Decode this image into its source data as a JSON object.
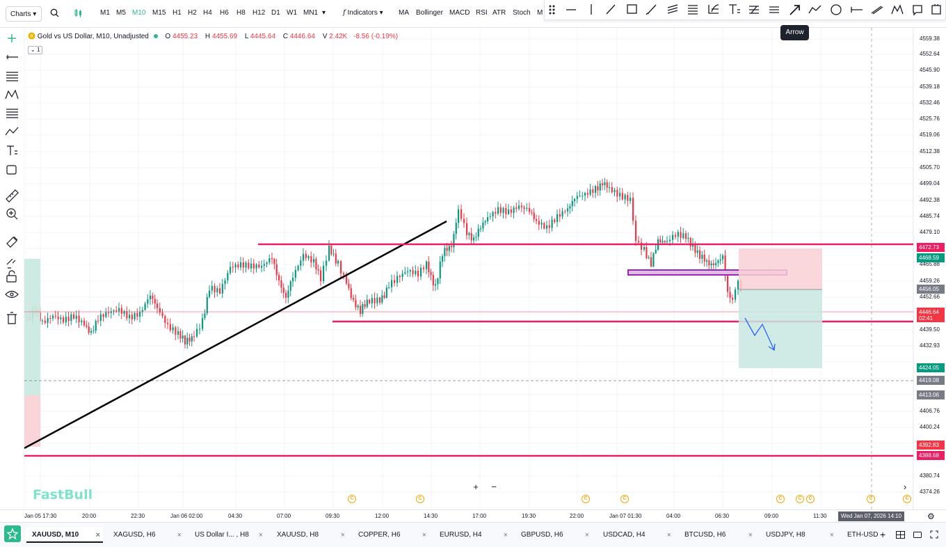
{
  "topbar": {
    "charts_label": "Charts",
    "timeframes": [
      "M1",
      "M5",
      "M10",
      "M15",
      "H1",
      "H2",
      "H4",
      "H6",
      "H8",
      "H12",
      "D1",
      "W1",
      "MN1"
    ],
    "active_timeframe": "M10",
    "indicators_label": "Indicators",
    "quick_indicators": [
      "MA",
      "Bollinger",
      "MACD",
      "RSI",
      "ATR",
      "Stoch",
      "M"
    ]
  },
  "tooltip": {
    "label": "Arrow"
  },
  "legend": {
    "symbol": "Gold vs US Dollar, M10, Unadjusted",
    "o_label": "O",
    "o": "4455.23",
    "h_label": "H",
    "h": "4455.69",
    "l_label": "L",
    "l": "4445.64",
    "c_label": "C",
    "c": "4446.64",
    "v_label": "V",
    "v": "2.42K",
    "change": "-8.56 (-0.19%)",
    "indicator_count": "1"
  },
  "price_axis": {
    "labels": [
      "4559.38",
      "4552.64",
      "4545.90",
      "4539.18",
      "4532.46",
      "4525.76",
      "4519.06",
      "4512.38",
      "4505.70",
      "4499.04",
      "4492.38",
      "4485.74",
      "4479.10",
      "4465.88",
      "4459.26",
      "4452.66",
      "4439.50",
      "4432.93",
      "4406.76",
      "4400.24",
      "4380.74",
      "4374.26"
    ],
    "tags": [
      {
        "value": "4472.73",
        "color": "#e91e63"
      },
      {
        "value": "4468.59",
        "color": "#089981"
      },
      {
        "value": "4456.05",
        "color": "#787b86"
      },
      {
        "value": "4446.64",
        "color": "#f23645"
      },
      {
        "value": "02:41",
        "color": "#f23645"
      },
      {
        "value": "4424.05",
        "color": "#089981"
      },
      {
        "value": "4419.08",
        "color": "#787b86"
      },
      {
        "value": "4413.06",
        "color": "#787b86"
      },
      {
        "value": "4392.83",
        "color": "#f23645"
      },
      {
        "value": "4388.68",
        "color": "#e91e63"
      }
    ]
  },
  "time_axis": {
    "labels": [
      "Jan 05 17:30",
      "20:00",
      "22:30",
      "Jan 06 02:00",
      "04:30",
      "07:00",
      "09:30",
      "12:00",
      "14:30",
      "17:00",
      "19:30",
      "22:00",
      "Jan 07 01:30",
      "04:00",
      "06:30",
      "09:00",
      "11:30"
    ],
    "cursor": "Wed Jan 07, 2026  14:10"
  },
  "watermark": {
    "text": "FastBull"
  },
  "tabs": [
    {
      "label": "XAUUSD, M10",
      "active": true
    },
    {
      "label": "XAGUSD, H6"
    },
    {
      "label": "US Dollar I... , H8"
    },
    {
      "label": "XAUUSD, H8"
    },
    {
      "label": "COPPER, H6"
    },
    {
      "label": "EURUSD, H4"
    },
    {
      "label": "GBPUSD, H6"
    },
    {
      "label": "USDCAD, H4"
    },
    {
      "label": "BTCUSD, H6"
    },
    {
      "label": "USDJPY, H8"
    },
    {
      "label": "ETH-USD"
    }
  ],
  "colors": {
    "up": "#089981",
    "down": "#f23645",
    "hline": "#e91e63",
    "zone": "#9c27b0",
    "arrow": "#2962ff",
    "accent": "#2bb98f"
  }
}
